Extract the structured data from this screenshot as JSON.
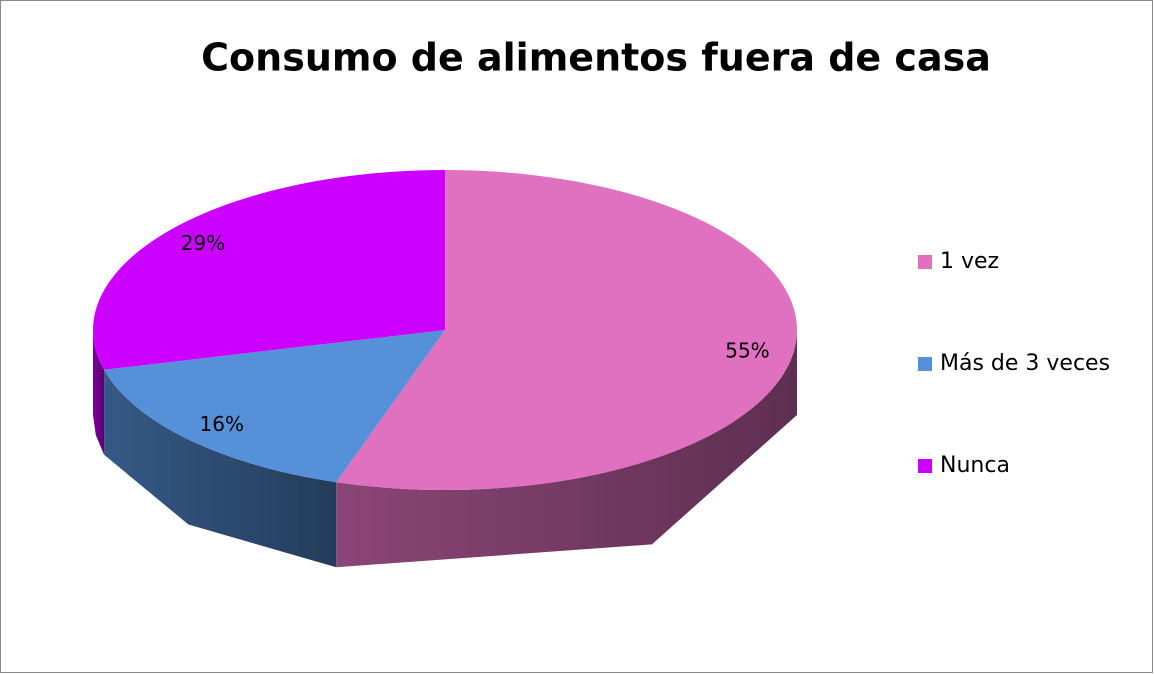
{
  "chart_data": {
    "type": "pie",
    "title": "Consumo de alimentos fuera de casa",
    "categories": [
      "1 vez",
      "Más de 3 veces",
      "Nunca"
    ],
    "values": [
      55,
      16,
      29
    ],
    "value_labels": [
      "55%",
      "16%",
      "29%"
    ],
    "colors": [
      "#e070c0",
      "#5590d8",
      "#cc00ff"
    ],
    "legend": "right"
  }
}
